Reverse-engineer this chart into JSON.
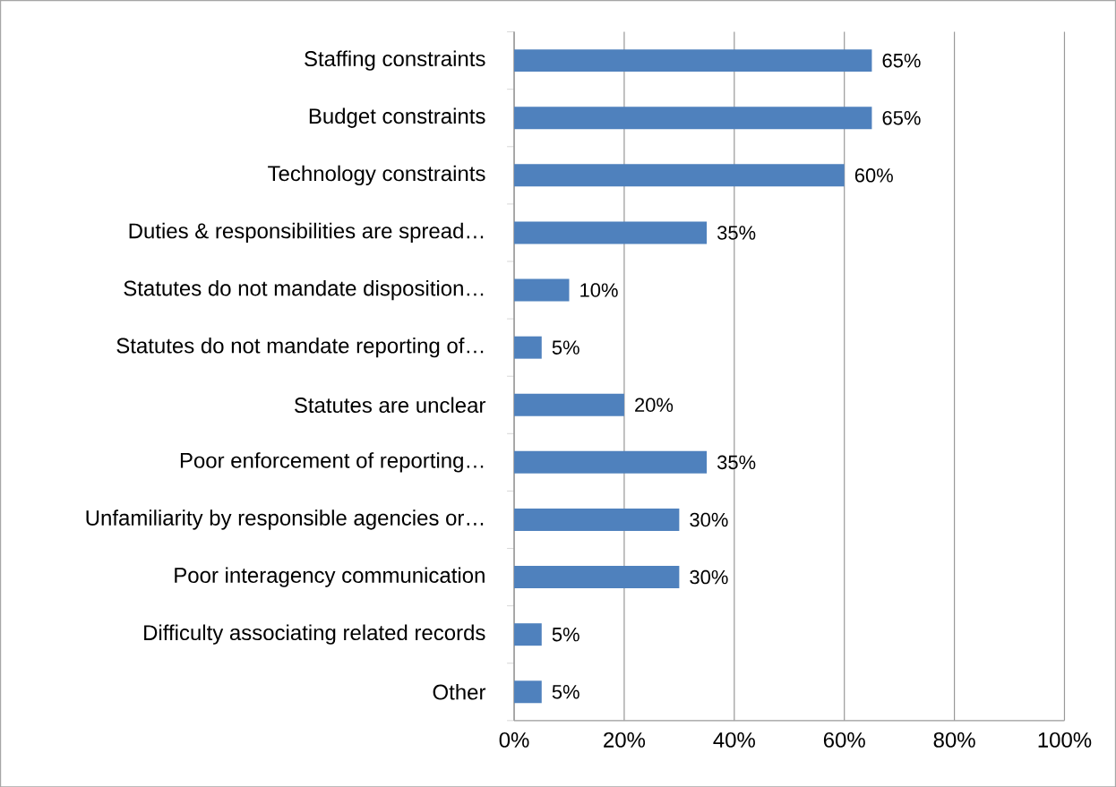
{
  "chart_data": {
    "type": "bar",
    "orientation": "horizontal",
    "categories": [
      "Staffing constraints",
      "Budget constraints",
      "Technology constraints",
      "Duties & responsibilities are spread…",
      "Statutes do not mandate disposition…",
      "Statutes do not mandate reporting of…",
      "Statutes are unclear",
      "Poor enforcement of reporting…",
      "Unfamiliarity by responsible agencies or…",
      "Poor interagency communication",
      "Difficulty associating related records",
      "Other"
    ],
    "values": [
      65,
      65,
      60,
      35,
      10,
      5,
      20,
      35,
      30,
      30,
      5,
      5
    ],
    "value_labels": [
      "65%",
      "65%",
      "60%",
      "35%",
      "10%",
      "5%",
      "20%",
      "35%",
      "30%",
      "30%",
      "5%",
      "5%"
    ],
    "color": "#4f81bd",
    "xlim": [
      0,
      100
    ],
    "xticks": [
      {
        "value": 0,
        "label": "0%"
      },
      {
        "value": 20,
        "label": "20%"
      },
      {
        "value": 40,
        "label": "40%"
      },
      {
        "value": 60,
        "label": "60%"
      },
      {
        "value": 80,
        "label": "80%"
      },
      {
        "value": 100,
        "label": "100%"
      }
    ],
    "grid": "x"
  }
}
